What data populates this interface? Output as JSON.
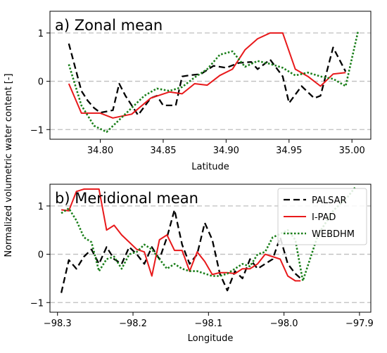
{
  "figure": {
    "ylabel": "Normalized volumetric water content [-]"
  },
  "colors": {
    "PALSAR": "#000000",
    "I-PAD": "#e8191b",
    "WEBDHM": "#1a7f1a",
    "zero_line": "#bfbfbf"
  },
  "chart_data": [
    {
      "type": "line",
      "title": "a) Zonal mean",
      "xlabel": "Latitude",
      "ylabel": "",
      "xlim": [
        34.76,
        35.015
      ],
      "ylim": [
        -1.2,
        1.45
      ],
      "xticks": [
        34.8,
        34.85,
        34.9,
        34.95,
        35.0
      ],
      "xtick_labels": [
        "34.80",
        "34.85",
        "34.90",
        "34.95",
        "35.00"
      ],
      "yticks": [
        -1,
        0,
        1
      ],
      "ytick_labels": [
        "−1",
        "0",
        "1"
      ],
      "dashed_reference_lines": [
        -1,
        0,
        1
      ],
      "legend": null,
      "series": [
        {
          "name": "PALSAR",
          "style": "dashed",
          "points": [
            [
              34.775,
              0.78
            ],
            [
              34.785,
              -0.2
            ],
            [
              34.79,
              -0.4
            ],
            [
              34.795,
              -0.55
            ],
            [
              34.8,
              -0.65
            ],
            [
              34.81,
              -0.6
            ],
            [
              34.815,
              -0.05
            ],
            [
              34.82,
              -0.3
            ],
            [
              34.83,
              -0.7
            ],
            [
              34.84,
              -0.35
            ],
            [
              34.845,
              -0.3
            ],
            [
              34.85,
              -0.5
            ],
            [
              34.86,
              -0.5
            ],
            [
              34.865,
              0.1
            ],
            [
              34.87,
              0.12
            ],
            [
              34.88,
              0.15
            ],
            [
              34.89,
              0.32
            ],
            [
              34.9,
              0.28
            ],
            [
              34.91,
              0.38
            ],
            [
              34.92,
              0.4
            ],
            [
              34.925,
              0.25
            ],
            [
              34.935,
              0.45
            ],
            [
              34.945,
              0.1
            ],
            [
              34.95,
              -0.45
            ],
            [
              34.96,
              -0.1
            ],
            [
              34.97,
              -0.35
            ],
            [
              34.975,
              -0.3
            ],
            [
              34.985,
              0.7
            ],
            [
              34.995,
              0.2
            ]
          ]
        },
        {
          "name": "I-PAD",
          "style": "solid",
          "points": [
            [
              34.775,
              -0.05
            ],
            [
              34.785,
              -0.66
            ],
            [
              34.8,
              -0.66
            ],
            [
              34.81,
              -0.76
            ],
            [
              34.825,
              -0.68
            ],
            [
              34.84,
              -0.35
            ],
            [
              34.855,
              -0.22
            ],
            [
              34.865,
              -0.26
            ],
            [
              34.875,
              -0.05
            ],
            [
              34.885,
              -0.08
            ],
            [
              34.895,
              0.12
            ],
            [
              34.905,
              0.25
            ],
            [
              34.915,
              0.65
            ],
            [
              34.925,
              0.88
            ],
            [
              34.935,
              1.0
            ],
            [
              34.945,
              1.0
            ],
            [
              34.955,
              0.25
            ],
            [
              34.965,
              0.1
            ],
            [
              34.975,
              -0.1
            ],
            [
              34.985,
              0.15
            ],
            [
              34.995,
              0.18
            ]
          ]
        },
        {
          "name": "WEBDHM",
          "style": "dotted",
          "points": [
            [
              34.775,
              0.35
            ],
            [
              34.785,
              -0.5
            ],
            [
              34.795,
              -0.92
            ],
            [
              34.805,
              -1.05
            ],
            [
              34.815,
              -0.8
            ],
            [
              34.825,
              -0.55
            ],
            [
              34.835,
              -0.3
            ],
            [
              34.845,
              -0.15
            ],
            [
              34.855,
              -0.2
            ],
            [
              34.865,
              -0.12
            ],
            [
              34.875,
              0.08
            ],
            [
              34.885,
              0.25
            ],
            [
              34.895,
              0.55
            ],
            [
              34.905,
              0.62
            ],
            [
              34.915,
              0.3
            ],
            [
              34.925,
              0.42
            ],
            [
              34.935,
              0.36
            ],
            [
              34.945,
              0.28
            ],
            [
              34.955,
              0.12
            ],
            [
              34.965,
              0.18
            ],
            [
              34.975,
              0.1
            ],
            [
              34.985,
              0.05
            ],
            [
              34.995,
              -0.1
            ],
            [
              35.005,
              1.05
            ]
          ]
        }
      ]
    },
    {
      "type": "line",
      "title": "b) Meridional mean",
      "xlabel": "Longitude",
      "ylabel": "",
      "xlim": [
        -98.31,
        -97.885
      ],
      "ylim": [
        -1.2,
        1.45
      ],
      "xticks": [
        -98.3,
        -98.2,
        -98.1,
        -98.0,
        -97.9
      ],
      "xtick_labels": [
        "−98.3",
        "−98.2",
        "−98.1",
        "−98.0",
        "−97.9"
      ],
      "yticks": [
        -1,
        0,
        1
      ],
      "ytick_labels": [
        "−1",
        "0",
        "1"
      ],
      "dashed_reference_lines": [
        -1,
        0,
        1
      ],
      "legend": "top-right",
      "series": [
        {
          "name": "PALSAR",
          "style": "dashed",
          "points": [
            [
              -98.295,
              -0.8
            ],
            [
              -98.285,
              -0.12
            ],
            [
              -98.275,
              -0.3
            ],
            [
              -98.265,
              -0.05
            ],
            [
              -98.255,
              0.1
            ],
            [
              -98.245,
              -0.2
            ],
            [
              -98.235,
              0.15
            ],
            [
              -98.225,
              -0.1
            ],
            [
              -98.215,
              -0.2
            ],
            [
              -98.205,
              0.15
            ],
            [
              -98.195,
              0.0
            ],
            [
              -98.185,
              -0.2
            ],
            [
              -98.175,
              0.15
            ],
            [
              -98.165,
              -0.1
            ],
            [
              -98.155,
              0.35
            ],
            [
              -98.145,
              0.92
            ],
            [
              -98.135,
              0.2
            ],
            [
              -98.125,
              -0.2
            ],
            [
              -98.115,
              0.0
            ],
            [
              -98.105,
              0.65
            ],
            [
              -98.095,
              0.3
            ],
            [
              -98.085,
              -0.4
            ],
            [
              -98.075,
              -0.75
            ],
            [
              -98.065,
              -0.35
            ],
            [
              -98.055,
              -0.5
            ],
            [
              -98.045,
              -0.1
            ],
            [
              -98.035,
              -0.3
            ],
            [
              -98.025,
              -0.2
            ],
            [
              -98.015,
              -0.1
            ],
            [
              -98.005,
              0.35
            ],
            [
              -97.995,
              -0.2
            ],
            [
              -97.985,
              -0.4
            ],
            [
              -97.978,
              -0.5
            ]
          ]
        },
        {
          "name": "I-PAD",
          "style": "solid",
          "points": [
            [
              -98.295,
              0.92
            ],
            [
              -98.285,
              0.9
            ],
            [
              -98.275,
              1.3
            ],
            [
              -98.265,
              1.35
            ],
            [
              -98.255,
              1.35
            ],
            [
              -98.245,
              1.35
            ],
            [
              -98.235,
              0.5
            ],
            [
              -98.225,
              0.6
            ],
            [
              -98.215,
              0.4
            ],
            [
              -98.205,
              0.25
            ],
            [
              -98.195,
              0.1
            ],
            [
              -98.185,
              0.05
            ],
            [
              -98.175,
              -0.45
            ],
            [
              -98.165,
              0.3
            ],
            [
              -98.155,
              0.4
            ],
            [
              -98.145,
              0.08
            ],
            [
              -98.135,
              0.08
            ],
            [
              -98.125,
              -0.35
            ],
            [
              -98.115,
              0.05
            ],
            [
              -98.105,
              -0.15
            ],
            [
              -98.095,
              -0.42
            ],
            [
              -98.085,
              -0.38
            ],
            [
              -98.075,
              -0.38
            ],
            [
              -98.065,
              -0.4
            ],
            [
              -98.055,
              -0.3
            ],
            [
              -98.045,
              -0.3
            ],
            [
              -98.035,
              -0.2
            ],
            [
              -98.025,
              0.0
            ],
            [
              -98.015,
              -0.05
            ],
            [
              -98.005,
              -0.1
            ],
            [
              -97.995,
              -0.45
            ],
            [
              -97.985,
              -0.55
            ],
            [
              -97.978,
              -0.55
            ]
          ]
        },
        {
          "name": "WEBDHM",
          "style": "dotted",
          "points": [
            [
              -98.295,
              0.85
            ],
            [
              -98.285,
              0.95
            ],
            [
              -98.275,
              0.7
            ],
            [
              -98.265,
              0.35
            ],
            [
              -98.255,
              0.25
            ],
            [
              -98.245,
              -0.35
            ],
            [
              -98.235,
              -0.1
            ],
            [
              -98.225,
              -0.05
            ],
            [
              -98.215,
              -0.3
            ],
            [
              -98.205,
              0.0
            ],
            [
              -98.195,
              0.05
            ],
            [
              -98.185,
              0.2
            ],
            [
              -98.175,
              0.1
            ],
            [
              -98.165,
              -0.1
            ],
            [
              -98.155,
              -0.3
            ],
            [
              -98.145,
              -0.2
            ],
            [
              -98.135,
              -0.3
            ],
            [
              -98.125,
              -0.35
            ],
            [
              -98.115,
              -0.35
            ],
            [
              -98.105,
              -0.4
            ],
            [
              -98.095,
              -0.45
            ],
            [
              -98.085,
              -0.45
            ],
            [
              -98.075,
              -0.4
            ],
            [
              -98.065,
              -0.3
            ],
            [
              -98.055,
              -0.2
            ],
            [
              -98.045,
              -0.25
            ],
            [
              -98.035,
              0.0
            ],
            [
              -98.025,
              0.05
            ],
            [
              -98.015,
              0.35
            ],
            [
              -98.005,
              0.42
            ],
            [
              -97.995,
              0.5
            ],
            [
              -97.985,
              0.3
            ],
            [
              -97.975,
              -0.55
            ],
            [
              -97.955,
              0.4
            ],
            [
              -97.935,
              0.9
            ],
            [
              -97.915,
              1.2
            ],
            [
              -97.905,
              1.4
            ]
          ]
        }
      ]
    }
  ]
}
